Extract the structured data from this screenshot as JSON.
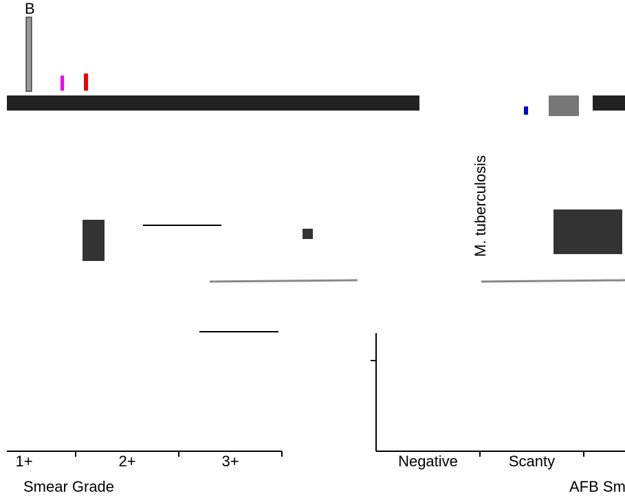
{
  "chart_data": [
    {
      "type": "scatter",
      "panel_label": "B",
      "categories": [
        "1+",
        "2+",
        "3+"
      ],
      "x_label": "Smear Grade"
    },
    {
      "type": "scatter",
      "categories": [
        "Negative",
        "Scanty"
      ],
      "x_label": "AFB Smear Grade",
      "y_label": "M. tuberculosis"
    }
  ]
}
